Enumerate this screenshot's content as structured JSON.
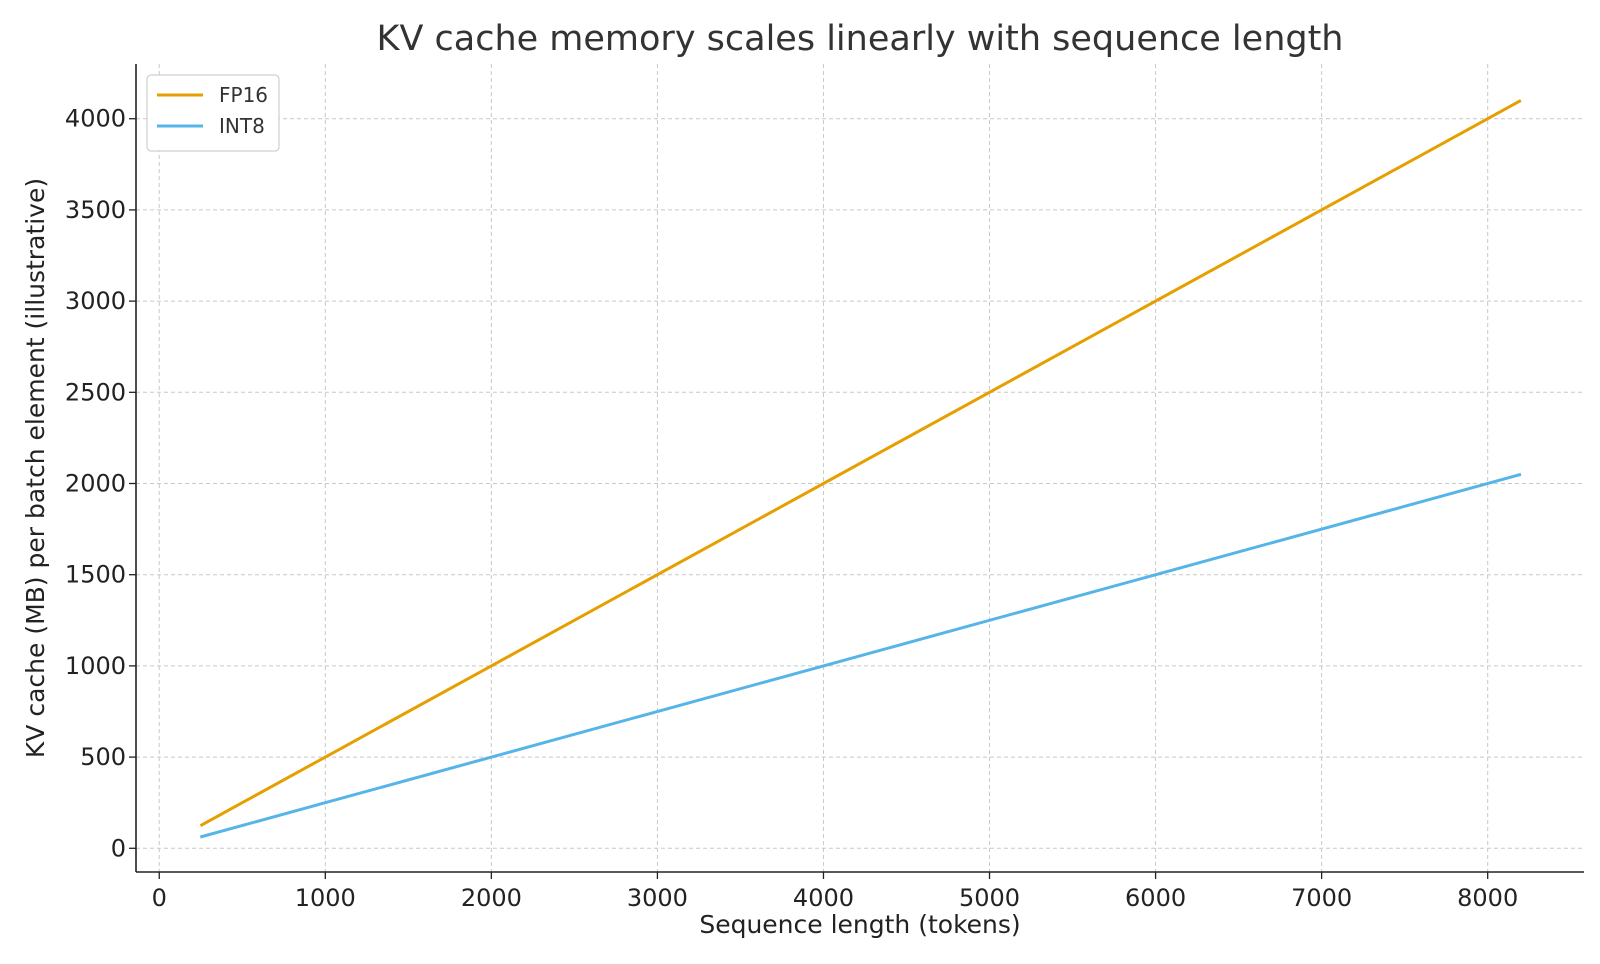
{
  "chart_data": {
    "type": "line",
    "title": "KV cache memory scales linearly with sequence length",
    "xlabel": "Sequence length (tokens)",
    "ylabel": "KV cache (MB) per batch element (illustrative)",
    "xlim": [
      -140,
      8580
    ],
    "ylim": [
      -130,
      4300
    ],
    "xticks": [
      0,
      1000,
      2000,
      3000,
      4000,
      5000,
      6000,
      7000,
      8000
    ],
    "yticks": [
      0,
      500,
      1000,
      1500,
      2000,
      2500,
      3000,
      3500,
      4000
    ],
    "grid": true,
    "legend_position": "top-left",
    "series": [
      {
        "name": "FP16",
        "color": "#E69F00",
        "x": [
          256,
          512,
          1024,
          2048,
          4096,
          8192
        ],
        "y": [
          128,
          256,
          512,
          1024,
          2048,
          4096
        ]
      },
      {
        "name": "INT8",
        "color": "#56B4E9",
        "x": [
          256,
          512,
          1024,
          2048,
          4096,
          8192
        ],
        "y": [
          64,
          128,
          256,
          512,
          1024,
          2048
        ]
      }
    ]
  }
}
